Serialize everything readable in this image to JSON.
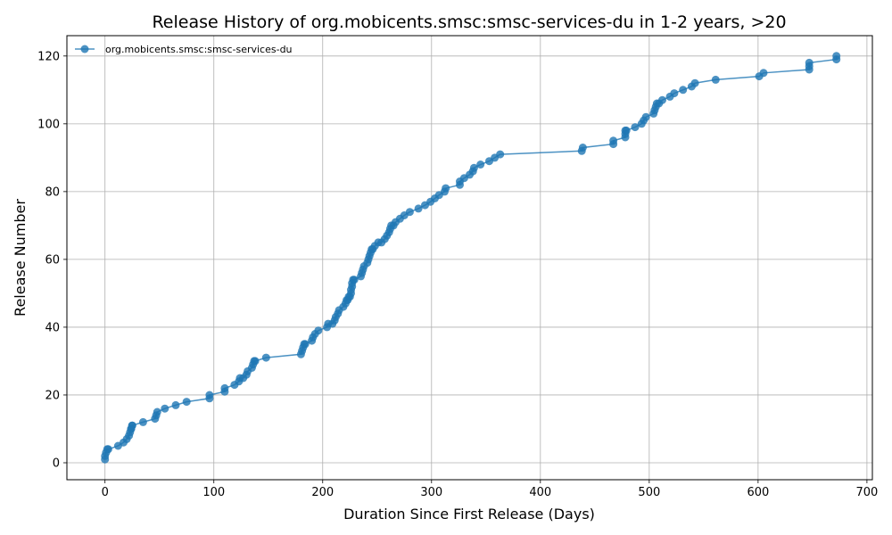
{
  "chart_data": {
    "type": "line",
    "title": "Release History of org.mobicents.smsc:smsc-services-du in 1-2 years, >20",
    "xlabel": "Duration Since First Release (Days)",
    "ylabel": "Release Number",
    "xlim": [
      -35,
      705
    ],
    "ylim": [
      -5,
      126
    ],
    "xticks": [
      0,
      100,
      200,
      300,
      400,
      500,
      600,
      700
    ],
    "yticks": [
      0,
      20,
      40,
      60,
      80,
      100,
      120
    ],
    "grid": true,
    "legend_position": "top-left",
    "color": "#1f77b4",
    "series": [
      {
        "name": "org.mobicents.smsc:smsc-services-du",
        "x": [
          0,
          0,
          1,
          2,
          3,
          12,
          17,
          20,
          22,
          23,
          24,
          24,
          25,
          25,
          35,
          46,
          47,
          48,
          55,
          65,
          75,
          96,
          96,
          110,
          110,
          119,
          123,
          124,
          127,
          130,
          131,
          135,
          136,
          137,
          138,
          148,
          180,
          181,
          182,
          183,
          184,
          190,
          191,
          193,
          196,
          204,
          205,
          209,
          211,
          212,
          214,
          215,
          219,
          221,
          222,
          223,
          224,
          225,
          226,
          226,
          227,
          227,
          228,
          229,
          235,
          236,
          237,
          238,
          241,
          242,
          243,
          244,
          245,
          246,
          248,
          251,
          254,
          257,
          259,
          261,
          262,
          263,
          265,
          267,
          271,
          275,
          280,
          288,
          294,
          299,
          303,
          307,
          312,
          313,
          326,
          326,
          330,
          335,
          338,
          339,
          345,
          353,
          358,
          363,
          438,
          439,
          467,
          467,
          478,
          478,
          478,
          479,
          487,
          493,
          495,
          497,
          504,
          505,
          506,
          507,
          509,
          512,
          519,
          523,
          531,
          539,
          542,
          561,
          601,
          605,
          647,
          647,
          647,
          672,
          672
        ],
        "y": [
          1,
          2,
          3,
          4,
          4,
          5,
          6,
          7,
          8,
          9,
          10,
          10,
          11,
          11,
          12,
          13,
          14,
          15,
          16,
          17,
          18,
          19,
          20,
          21,
          22,
          23,
          24,
          25,
          25,
          26,
          27,
          28,
          29,
          30,
          30,
          31,
          32,
          33,
          34,
          35,
          35,
          36,
          37,
          38,
          39,
          40,
          41,
          41,
          42,
          43,
          44,
          45,
          46,
          47,
          48,
          48,
          49,
          49,
          50,
          51,
          52,
          53,
          54,
          54,
          55,
          56,
          57,
          58,
          59,
          60,
          61,
          62,
          63,
          63,
          64,
          65,
          65,
          66,
          67,
          68,
          69,
          70,
          70,
          71,
          72,
          73,
          74,
          75,
          76,
          77,
          78,
          79,
          80,
          81,
          82,
          83,
          84,
          85,
          86,
          87,
          88,
          89,
          90,
          91,
          92,
          93,
          94,
          95,
          96,
          97,
          98,
          98,
          99,
          100,
          101,
          102,
          103,
          104,
          105,
          106,
          106,
          107,
          108,
          109,
          110,
          111,
          112,
          113,
          114,
          115,
          116,
          117,
          118,
          119,
          120
        ]
      }
    ]
  }
}
